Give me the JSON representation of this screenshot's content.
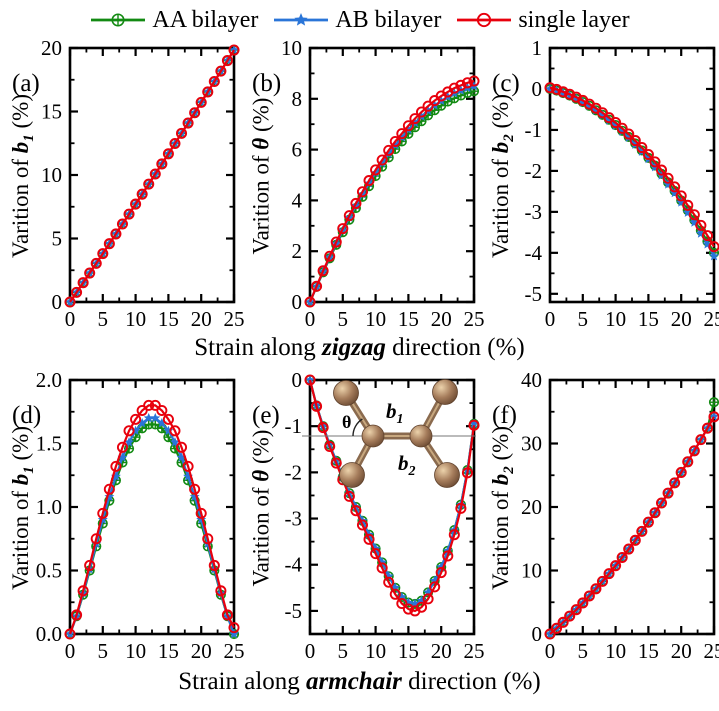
{
  "legend": {
    "items": [
      {
        "label": "AA bilayer",
        "color": "#128a12",
        "marker": "circle-plus"
      },
      {
        "label": "AB bilayer",
        "color": "#2a75d8",
        "marker": "star"
      },
      {
        "label": "single layer",
        "color": "#e8000d",
        "marker": "open-circle"
      }
    ]
  },
  "x_axis_labels": {
    "row1": {
      "prefix": "Strain along ",
      "emph": "zigzag",
      "suffix": " direction (%)"
    },
    "row2": {
      "prefix": "Strain along ",
      "emph": "armchair",
      "suffix": " direction (%)"
    }
  },
  "chart_data": [
    {
      "type": "line",
      "tag": "(a)",
      "ylabel": {
        "prefix": "Varition of ",
        "symbol": "b",
        "subscript": "1",
        "suffix": " (%)"
      },
      "xlim": [
        0,
        25
      ],
      "ylim": [
        0,
        20
      ],
      "xticks": [
        0,
        5,
        10,
        15,
        20,
        25
      ],
      "xtick_labels": [
        "0",
        "5",
        "10",
        "15",
        "20",
        "25"
      ],
      "xminor": 2.5,
      "yticks": [
        0,
        5,
        10,
        15,
        20
      ],
      "ytick_labels": [
        "0",
        "5",
        "10",
        "15",
        "20"
      ],
      "yminor": 2.5,
      "x": [
        0,
        1,
        2,
        3,
        4,
        5,
        6,
        7,
        8,
        9,
        10,
        11,
        12,
        13,
        14,
        15,
        16,
        17,
        18,
        19,
        20,
        21,
        22,
        23,
        24,
        25
      ],
      "series": [
        {
          "name": "AA bilayer",
          "values": [
            0,
            0.76,
            1.52,
            2.28,
            3.04,
            3.81,
            4.59,
            5.36,
            6.14,
            6.92,
            7.71,
            8.49,
            9.28,
            10.08,
            10.87,
            11.67,
            12.48,
            13.28,
            14.09,
            14.9,
            15.72,
            16.54,
            17.36,
            18.18,
            19.01,
            19.84
          ]
        },
        {
          "name": "AB bilayer",
          "values": [
            0,
            0.76,
            1.52,
            2.28,
            3.04,
            3.81,
            4.59,
            5.36,
            6.14,
            6.92,
            7.71,
            8.49,
            9.28,
            10.08,
            10.87,
            11.67,
            12.48,
            13.28,
            14.09,
            14.9,
            15.72,
            16.54,
            17.36,
            18.18,
            19.01,
            19.84
          ]
        },
        {
          "name": "single layer",
          "values": [
            0,
            0.76,
            1.52,
            2.28,
            3.04,
            3.81,
            4.59,
            5.36,
            6.14,
            6.92,
            7.71,
            8.49,
            9.28,
            10.08,
            10.87,
            11.67,
            12.48,
            13.28,
            14.09,
            14.9,
            15.72,
            16.54,
            17.36,
            18.18,
            19.01,
            19.84
          ]
        }
      ]
    },
    {
      "type": "line",
      "tag": "(b)",
      "ylabel": {
        "prefix": "Varition of ",
        "symbol": "θ",
        "subscript": "",
        "suffix": " (%)"
      },
      "xlim": [
        0,
        25
      ],
      "ylim": [
        0,
        10
      ],
      "xticks": [
        0,
        5,
        10,
        15,
        20,
        25
      ],
      "xtick_labels": [
        "0",
        "5",
        "10",
        "15",
        "20",
        "25"
      ],
      "xminor": 2.5,
      "yticks": [
        0,
        2,
        4,
        6,
        8,
        10
      ],
      "ytick_labels": [
        "0",
        "2",
        "4",
        "6",
        "8",
        "10"
      ],
      "yminor": 1,
      "x": [
        0,
        1,
        2,
        3,
        4,
        5,
        6,
        7,
        8,
        9,
        10,
        11,
        12,
        13,
        14,
        15,
        16,
        17,
        18,
        19,
        20,
        21,
        22,
        23,
        24,
        25
      ],
      "series": [
        {
          "name": "AA bilayer",
          "values": [
            0,
            0.6,
            1.17,
            1.72,
            2.25,
            2.75,
            3.24,
            3.7,
            4.14,
            4.56,
            4.96,
            5.33,
            5.69,
            6.02,
            6.32,
            6.62,
            6.88,
            7.12,
            7.35,
            7.55,
            7.73,
            7.89,
            8.02,
            8.13,
            8.23,
            8.3
          ]
        },
        {
          "name": "AB bilayer",
          "values": [
            0,
            0.61,
            1.2,
            1.76,
            2.3,
            2.82,
            3.32,
            3.79,
            4.24,
            4.67,
            5.08,
            5.46,
            5.83,
            6.17,
            6.48,
            6.78,
            7.05,
            7.3,
            7.53,
            7.74,
            7.92,
            8.08,
            8.22,
            8.33,
            8.43,
            8.5
          ]
        },
        {
          "name": "single layer",
          "values": [
            0,
            0.62,
            1.23,
            1.8,
            2.36,
            2.89,
            3.4,
            3.88,
            4.34,
            4.78,
            5.2,
            5.59,
            5.97,
            6.32,
            6.63,
            6.94,
            7.22,
            7.48,
            7.71,
            7.93,
            8.11,
            8.27,
            8.42,
            8.53,
            8.63,
            8.7
          ]
        }
      ]
    },
    {
      "type": "line",
      "tag": "(c)",
      "ylabel": {
        "prefix": "Varition of ",
        "symbol": "b",
        "subscript": "2",
        "suffix": " (%)"
      },
      "xlim": [
        0,
        25
      ],
      "ylim": [
        -5.2,
        1
      ],
      "xticks": [
        0,
        5,
        10,
        15,
        20,
        25
      ],
      "xtick_labels": [
        "0",
        "5",
        "10",
        "15",
        "20",
        "25"
      ],
      "xminor": 2.5,
      "yticks": [
        1,
        0,
        -1,
        -2,
        -3,
        -4,
        -5
      ],
      "ytick_labels": [
        "1",
        "0",
        "-1",
        "-2",
        "-3",
        "-4",
        "-5"
      ],
      "yminor": 0.5,
      "x": [
        0,
        1,
        2,
        3,
        4,
        5,
        6,
        7,
        8,
        9,
        10,
        11,
        12,
        13,
        14,
        15,
        16,
        17,
        18,
        19,
        20,
        21,
        22,
        23,
        24,
        25
      ],
      "series": [
        {
          "name": "AA bilayer",
          "values": [
            0,
            -0.04,
            -0.1,
            -0.16,
            -0.24,
            -0.32,
            -0.41,
            -0.52,
            -0.63,
            -0.75,
            -0.88,
            -1.02,
            -1.17,
            -1.33,
            -1.5,
            -1.68,
            -1.87,
            -2.07,
            -2.28,
            -2.49,
            -2.72,
            -2.96,
            -3.2,
            -3.46,
            -3.72,
            -4.0
          ]
        },
        {
          "name": "AB bilayer",
          "values": [
            0,
            -0.04,
            -0.1,
            -0.16,
            -0.24,
            -0.33,
            -0.42,
            -0.53,
            -0.64,
            -0.77,
            -0.9,
            -1.04,
            -1.19,
            -1.36,
            -1.53,
            -1.71,
            -1.91,
            -2.11,
            -2.33,
            -2.54,
            -2.77,
            -3.02,
            -3.26,
            -3.53,
            -3.79,
            -4.08
          ]
        },
        {
          "name": "single layer",
          "values": [
            0.03,
            -0.01,
            -0.07,
            -0.13,
            -0.2,
            -0.28,
            -0.37,
            -0.47,
            -0.58,
            -0.7,
            -0.82,
            -0.96,
            -1.1,
            -1.26,
            -1.43,
            -1.6,
            -1.78,
            -1.98,
            -2.18,
            -2.39,
            -2.61,
            -2.84,
            -3.07,
            -3.33,
            -3.58,
            -3.85
          ]
        }
      ]
    },
    {
      "type": "line",
      "tag": "(d)",
      "ylabel": {
        "prefix": "Varition of ",
        "symbol": "b",
        "subscript": "1",
        "suffix": " (%)"
      },
      "xlim": [
        0,
        25
      ],
      "ylim": [
        0,
        2
      ],
      "xticks": [
        0,
        5,
        10,
        15,
        20,
        25
      ],
      "xtick_labels": [
        "0",
        "5",
        "10",
        "15",
        "20",
        "25"
      ],
      "xminor": 2.5,
      "yticks": [
        0,
        0.5,
        1,
        1.5,
        2
      ],
      "ytick_labels": [
        "0.0",
        "0.5",
        "1.0",
        "1.5",
        "2.0"
      ],
      "yminor": 0.25,
      "x": [
        0,
        1,
        2,
        3,
        4,
        5,
        6,
        7,
        8,
        9,
        10,
        11,
        12,
        13,
        14,
        15,
        16,
        17,
        18,
        19,
        20,
        21,
        22,
        23,
        24,
        25
      ],
      "series": [
        {
          "name": "AA bilayer",
          "values": [
            0,
            0.14,
            0.31,
            0.5,
            0.69,
            0.87,
            1.05,
            1.21,
            1.35,
            1.46,
            1.55,
            1.62,
            1.65,
            1.65,
            1.62,
            1.55,
            1.46,
            1.35,
            1.21,
            1.05,
            0.87,
            0.69,
            0.5,
            0.31,
            0.14,
            0
          ]
        },
        {
          "name": "AB bilayer",
          "values": [
            0,
            0.14,
            0.32,
            0.51,
            0.71,
            0.9,
            1.08,
            1.24,
            1.39,
            1.51,
            1.6,
            1.66,
            1.7,
            1.7,
            1.66,
            1.6,
            1.51,
            1.39,
            1.24,
            1.08,
            0.9,
            0.71,
            0.51,
            0.32,
            0.14,
            0
          ]
        },
        {
          "name": "single layer",
          "values": [
            0,
            0.15,
            0.34,
            0.54,
            0.75,
            0.95,
            1.14,
            1.32,
            1.47,
            1.6,
            1.69,
            1.76,
            1.8,
            1.8,
            1.76,
            1.69,
            1.6,
            1.47,
            1.32,
            1.14,
            0.95,
            0.75,
            0.54,
            0.34,
            0.15,
            0.05
          ]
        }
      ]
    },
    {
      "type": "line",
      "tag": "(e)",
      "ylabel": {
        "prefix": "Varition of ",
        "symbol": "θ",
        "subscript": "",
        "suffix": " (%)"
      },
      "xlim": [
        0,
        25
      ],
      "ylim": [
        -5.5,
        0
      ],
      "xticks": [
        0,
        5,
        10,
        15,
        20,
        25
      ],
      "xtick_labels": [
        "0",
        "5",
        "10",
        "15",
        "20",
        "25"
      ],
      "xminor": 2.5,
      "yticks": [
        0,
        -1,
        -2,
        -3,
        -4,
        -5
      ],
      "ytick_labels": [
        "0",
        "-1",
        "-2",
        "-3",
        "-4",
        "-5"
      ],
      "yminor": 0.5,
      "x": [
        0,
        1,
        2,
        3,
        4,
        5,
        6,
        7,
        8,
        9,
        10,
        11,
        12,
        13,
        14,
        15,
        16,
        17,
        18,
        19,
        20,
        21,
        22,
        23,
        24,
        25
      ],
      "inset": {
        "atom_color": "#a57c5b",
        "labels": {
          "b1_symbol": "b",
          "b1_sub": "1",
          "theta": "θ",
          "b2_symbol": "b",
          "b2_sub": "2"
        }
      },
      "series": [
        {
          "name": "AA bilayer",
          "values": [
            0,
            -0.55,
            -1.0,
            -1.4,
            -1.75,
            -2.1,
            -2.45,
            -2.75,
            -3.05,
            -3.35,
            -3.65,
            -3.95,
            -4.25,
            -4.5,
            -4.7,
            -4.82,
            -4.85,
            -4.78,
            -4.6,
            -4.35,
            -4.05,
            -3.7,
            -3.25,
            -2.7,
            -1.95,
            -0.95
          ]
        },
        {
          "name": "AB bilayer",
          "values": [
            0,
            -0.55,
            -1.0,
            -1.4,
            -1.75,
            -2.1,
            -2.45,
            -2.75,
            -3.05,
            -3.35,
            -3.65,
            -3.95,
            -4.25,
            -4.5,
            -4.7,
            -4.82,
            -4.85,
            -4.78,
            -4.6,
            -4.35,
            -4.05,
            -3.7,
            -3.25,
            -2.7,
            -1.95,
            -0.95
          ]
        },
        {
          "name": "single layer",
          "values": [
            0,
            -0.57,
            -1.03,
            -1.44,
            -1.8,
            -2.16,
            -2.52,
            -2.83,
            -3.14,
            -3.45,
            -3.76,
            -4.07,
            -4.38,
            -4.64,
            -4.84,
            -4.96,
            -5.0,
            -4.92,
            -4.74,
            -4.48,
            -4.17,
            -3.81,
            -3.35,
            -2.78,
            -2.01,
            -0.98
          ]
        }
      ]
    },
    {
      "type": "line",
      "tag": "(f)",
      "ylabel": {
        "prefix": "Varition of ",
        "symbol": "b",
        "subscript": "2",
        "suffix": " (%)"
      },
      "xlim": [
        0,
        25
      ],
      "ylim": [
        0,
        40
      ],
      "xticks": [
        0,
        5,
        10,
        15,
        20,
        25
      ],
      "xtick_labels": [
        "0",
        "5",
        "10",
        "15",
        "20",
        "25"
      ],
      "xminor": 2.5,
      "yticks": [
        0,
        10,
        20,
        30,
        40
      ],
      "ytick_labels": [
        "0",
        "10",
        "20",
        "30",
        "40"
      ],
      "yminor": 5,
      "x": [
        0,
        1,
        2,
        3,
        4,
        5,
        6,
        7,
        8,
        9,
        10,
        11,
        12,
        13,
        14,
        15,
        16,
        17,
        18,
        19,
        20,
        21,
        22,
        23,
        24,
        25
      ],
      "series": [
        {
          "name": "AA bilayer",
          "values": [
            0,
            0.9,
            1.84,
            2.82,
            3.83,
            4.89,
            5.99,
            7.12,
            8.29,
            9.51,
            10.76,
            12.05,
            13.38,
            14.75,
            16.16,
            17.61,
            19.1,
            20.63,
            22.19,
            23.8,
            25.44,
            27.12,
            28.85,
            30.61,
            32.41,
            36.5
          ]
        },
        {
          "name": "AB bilayer",
          "values": [
            0,
            0.9,
            1.84,
            2.82,
            3.83,
            4.89,
            5.99,
            7.12,
            8.29,
            9.51,
            10.76,
            12.05,
            13.38,
            14.75,
            16.16,
            17.61,
            19.1,
            20.63,
            22.19,
            23.8,
            25.44,
            27.12,
            28.85,
            30.61,
            32.41,
            34.25
          ]
        },
        {
          "name": "single layer",
          "values": [
            0,
            0.9,
            1.84,
            2.82,
            3.83,
            4.89,
            5.99,
            7.12,
            8.29,
            9.51,
            10.76,
            12.05,
            13.38,
            14.75,
            16.16,
            17.61,
            19.1,
            20.63,
            22.19,
            23.8,
            25.44,
            27.12,
            28.85,
            30.61,
            32.41,
            34.2
          ]
        }
      ]
    }
  ]
}
